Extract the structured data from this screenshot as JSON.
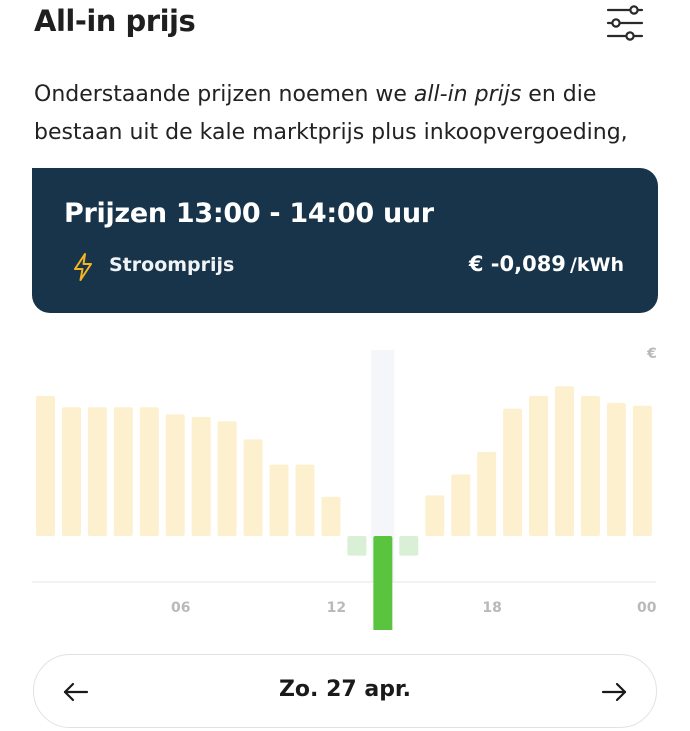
{
  "header": {
    "title": "All-in prijs"
  },
  "intro": {
    "part1": "Onderstaande prijzen noemen we ",
    "emph": "all-in prijs",
    "part2": " en die bestaan uit de kale marktprijs plus inkoopvergoeding,"
  },
  "tooltip": {
    "title": "Prijzen 13:00 - 14:00 uur",
    "label": "Stroomprijs",
    "value": "€ -0,089",
    "unit": "/kWh"
  },
  "colors": {
    "card_bg": "#17344a",
    "bar_positive": "#fdf0cf",
    "bar_negative": "#d9efd6",
    "bar_selected": "#5bc43f",
    "bolt": "#f3b51f"
  },
  "chart_data": {
    "type": "bar",
    "unit": "€",
    "hours": [
      0,
      1,
      2,
      3,
      4,
      5,
      6,
      7,
      8,
      9,
      10,
      11,
      12,
      13,
      14,
      15,
      16,
      17,
      18,
      19,
      20,
      21,
      22,
      23
    ],
    "values": [
      0.1,
      0.092,
      0.092,
      0.092,
      0.092,
      0.087,
      0.085,
      0.082,
      0.069,
      0.051,
      0.051,
      0.028,
      -0.014,
      -0.089,
      -0.014,
      0.029,
      0.044,
      0.06,
      0.091,
      0.1,
      0.107,
      0.1,
      0.095,
      0.093
    ],
    "selected_hour": 13,
    "x_tick_labels": [
      "06",
      "12",
      "18",
      "00"
    ],
    "y_unit_label": "€"
  },
  "date_nav": {
    "prev_icon": "arrow-left-icon",
    "date": "Zo. 27 apr.",
    "next_icon": "arrow-right-icon"
  }
}
